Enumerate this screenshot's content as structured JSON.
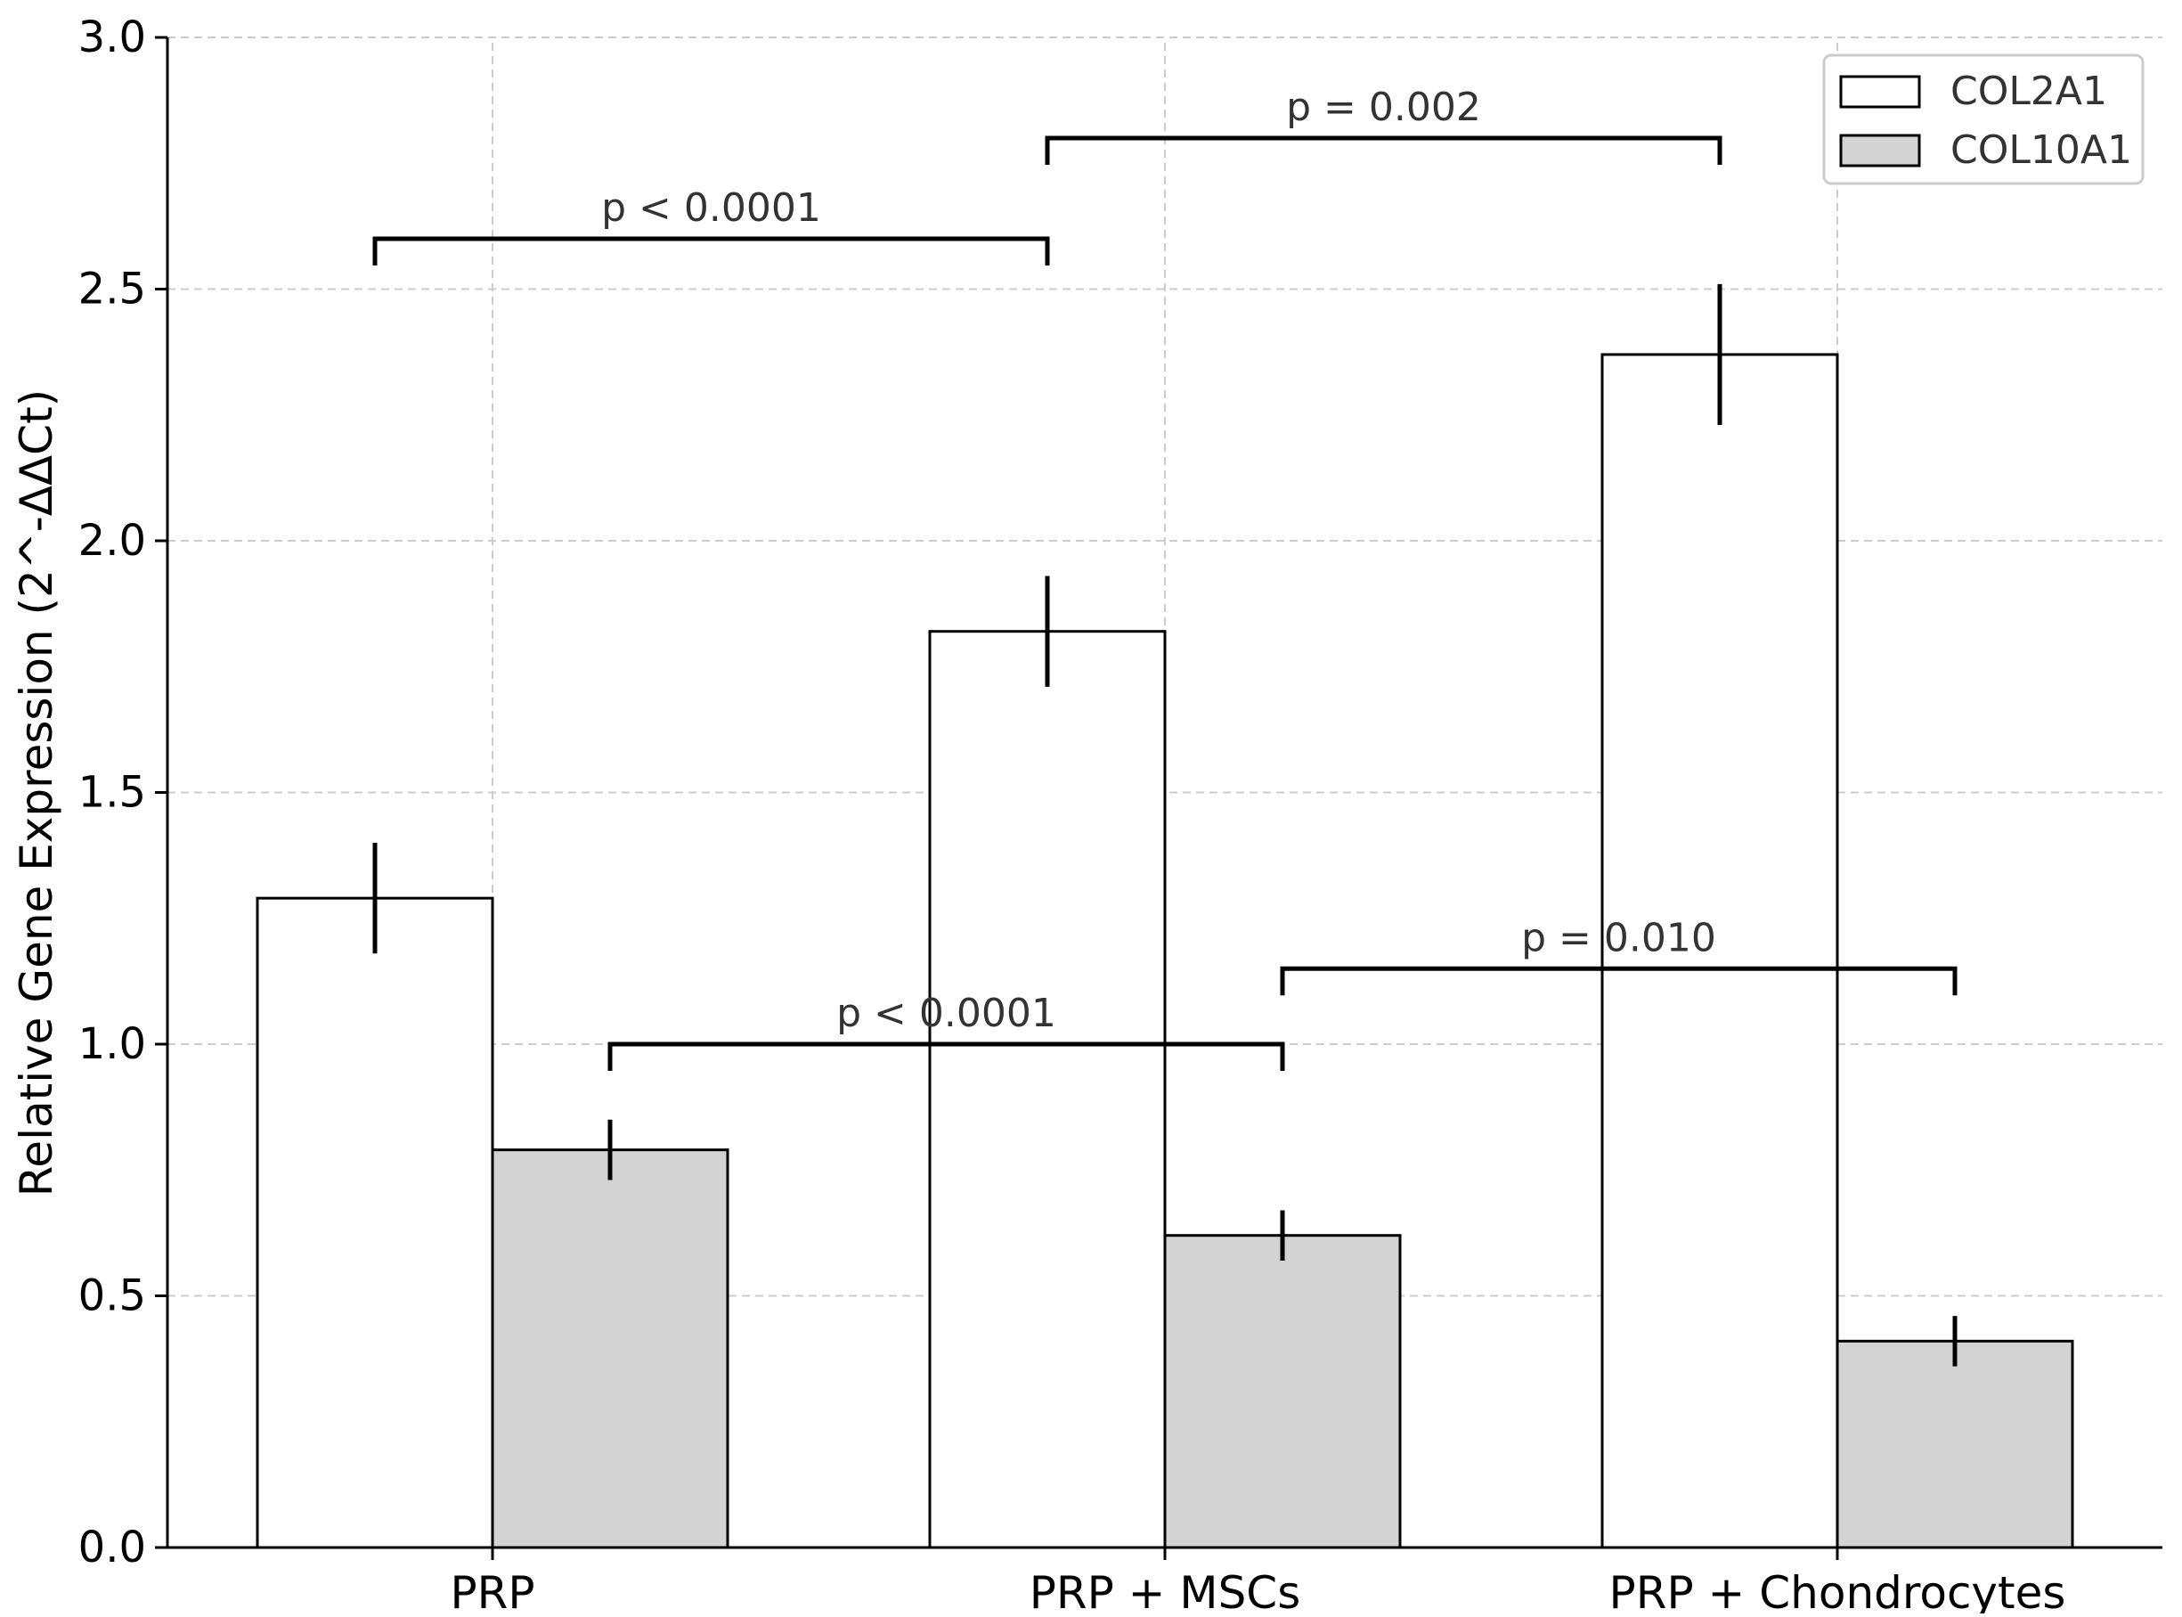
{
  "chart_data": {
    "type": "bar",
    "title": "",
    "xlabel": "",
    "ylabel": "Relative Gene Expression (2^-ΔΔCt)",
    "ylim": [
      0,
      3.0
    ],
    "yticks": [
      0.0,
      0.5,
      1.0,
      1.5,
      2.0,
      2.5,
      3.0
    ],
    "ytick_labels": [
      "0.0",
      "0.5",
      "1.0",
      "1.5",
      "2.0",
      "2.5",
      "3.0"
    ],
    "grid": true,
    "legend_position": "top-right",
    "categories": [
      "PRP",
      "PRP + MSCs",
      "PRP + Chondrocytes"
    ],
    "series": [
      {
        "name": "COL2A1",
        "values": [
          1.29,
          1.82,
          2.37
        ],
        "errors": [
          0.11,
          0.11,
          0.14
        ],
        "fill": "#ffffff"
      },
      {
        "name": "COL10A1",
        "values": [
          0.79,
          0.62,
          0.41
        ],
        "errors": [
          0.06,
          0.05,
          0.05
        ],
        "fill": "#d3d3d3"
      }
    ],
    "significance": [
      {
        "label": "p < 0.0001",
        "series": 0,
        "from": 0,
        "to": 1,
        "y": 2.6
      },
      {
        "label": "p = 0.002",
        "series": 0,
        "from": 1,
        "to": 2,
        "y": 2.8
      },
      {
        "label": "p < 0.0001",
        "series": 1,
        "from": 0,
        "to": 1,
        "y": 1.0
      },
      {
        "label": "p = 0.010",
        "series": 1,
        "from": 1,
        "to": 2,
        "y": 1.15
      }
    ]
  },
  "colors": {
    "axis": "#000000",
    "grid": "#cccccc",
    "bar_edge": "#000000",
    "text": "#000000",
    "annotation_text": "#333333"
  }
}
